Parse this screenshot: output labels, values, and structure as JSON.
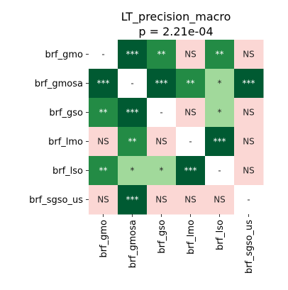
{
  "chart_data": {
    "type": "heatmap",
    "title": "LT_precision_macro",
    "subtitle": "p = 2.21e-04",
    "xlabel": "",
    "ylabel": "",
    "rows": [
      "brf_gmo",
      "brf_gmosa",
      "brf_gso",
      "brf_lmo",
      "brf_lso",
      "brf_sgso_us"
    ],
    "columns": [
      "brf_gmo",
      "brf_gmosa",
      "brf_gso",
      "brf_lmo",
      "brf_lso",
      "brf_sgso_us"
    ],
    "cells": [
      [
        "-",
        "***",
        "**",
        "NS",
        "**",
        "NS"
      ],
      [
        "***",
        "-",
        "***",
        "**",
        "*",
        "***"
      ],
      [
        "**",
        "***",
        "-",
        "NS",
        "*",
        "NS"
      ],
      [
        "NS",
        "**",
        "NS",
        "-",
        "***",
        "NS"
      ],
      [
        "**",
        "*",
        "*",
        "***",
        "-",
        "NS"
      ],
      [
        "NS",
        "***",
        "NS",
        "NS",
        "NS",
        "-"
      ]
    ],
    "colors": {
      "***": "#005a32",
      "**": "#238b45",
      "*": "#a1d99b",
      "NS": "#fbd7d4",
      "-": "#ffffff"
    },
    "text_colors": {
      "***": "#ffffff",
      "**": "#ffffff",
      "*": "#262626",
      "NS": "#262626",
      "-": "#262626"
    },
    "grid": false,
    "legend": "none"
  }
}
